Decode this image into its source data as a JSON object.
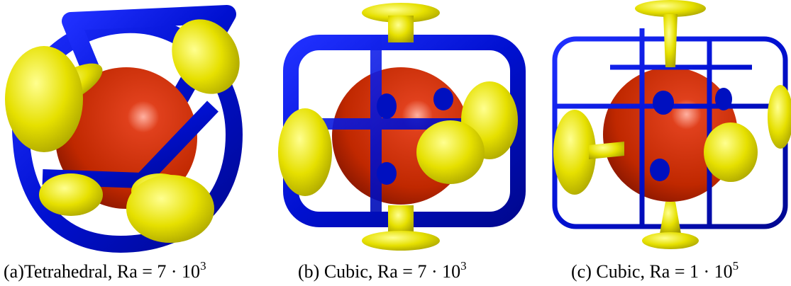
{
  "panels": [
    {
      "caption": "(a)Tetrahedral, Ra = 7 · 10",
      "exponent": "3"
    },
    {
      "caption": "(b) Cubic, Ra = 7 · 10",
      "exponent": "3"
    },
    {
      "caption": "(c) Cubic, Ra = 1 · 10",
      "exponent": "5"
    }
  ]
}
